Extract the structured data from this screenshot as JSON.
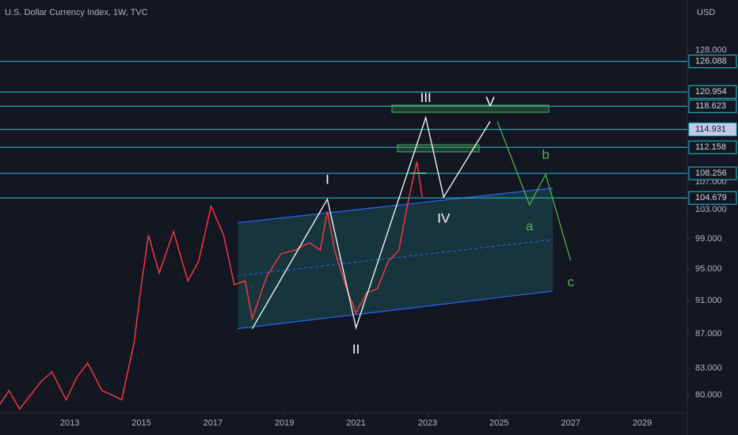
{
  "chart_data": {
    "type": "line",
    "title": "U.S. Dollar Currency Index, 1W, TVC",
    "currency": "USD",
    "log_scale": true,
    "xlim": [
      2011.05,
      2030.26
    ],
    "xticks": [
      2013,
      2015,
      2017,
      2019,
      2021,
      2023,
      2025,
      2027,
      2029
    ],
    "ylim": [
      78.1,
      137.1
    ],
    "yticks": [
      {
        "value": 80,
        "label": "80.000"
      },
      {
        "value": 83,
        "label": "83.000"
      },
      {
        "value": 87,
        "label": "87.000"
      },
      {
        "value": 91,
        "label": "91.000"
      },
      {
        "value": 95,
        "label": "95.000"
      },
      {
        "value": 99,
        "label": "99.000"
      },
      {
        "value": 103,
        "label": "103.000"
      },
      {
        "value": 107,
        "label": "107.000"
      },
      {
        "value": 128,
        "label": "128.000"
      }
    ],
    "series": [
      {
        "color": "#f23645",
        "x": [
          2011.05,
          2011.3,
          2011.6,
          2011.9,
          2012.2,
          2012.5,
          2012.9,
          2013.2,
          2013.5,
          2013.9,
          2014.2,
          2014.45,
          2014.8,
          2015.0,
          2015.2,
          2015.5,
          2015.9,
          2016.3,
          2016.6,
          2016.95,
          2017.3,
          2017.6,
          2017.9,
          2018.1,
          2018.5,
          2018.9,
          2019.3,
          2019.7,
          2020.0,
          2020.2,
          2020.4,
          2020.7,
          2021.0,
          2021.3,
          2021.6,
          2021.9,
          2022.2,
          2022.45,
          2022.7,
          2022.85
        ],
        "values": [
          79,
          80.5,
          78.5,
          80,
          81.5,
          82.6,
          79.5,
          82,
          83.6,
          80.5,
          80,
          79.5,
          86,
          93,
          99.5,
          94.5,
          100,
          93.5,
          96,
          103.5,
          99.5,
          93,
          93.5,
          88.8,
          94,
          97,
          97.5,
          98.5,
          97.5,
          102.8,
          97.5,
          93,
          89.5,
          92,
          92.5,
          96,
          97.5,
          104,
          110,
          104.8
        ]
      }
    ],
    "levels": [
      126.088,
      120.954,
      118.623,
      114.931,
      112.158,
      108.256,
      104.679
    ],
    "highlighted_level": 3,
    "level_color": "#26c6da",
    "channel": {
      "x": [
        2017.7,
        2026.5
      ],
      "upper": [
        101.2,
        106.1
      ],
      "lower": [
        87.6,
        92.2
      ],
      "color": "#2962ff"
    },
    "waves": [
      {
        "color": "#ffffff",
        "x": [
          2018.1,
          2020.2,
          2021.0,
          2022.95,
          2023.45,
          2024.75
        ],
        "values": [
          87.6,
          104.5,
          87.7,
          116.8,
          104.8,
          116.2
        ],
        "labels": [
          null,
          "I",
          "II",
          "III",
          "IV",
          "V"
        ]
      },
      {
        "color": "#4caf50",
        "x": [
          2024.95,
          2025.85,
          2026.3,
          2027.0
        ],
        "values": [
          116.2,
          103.7,
          108.1,
          96.1
        ],
        "labels": [
          null,
          "a",
          "b",
          "c"
        ]
      }
    ]
  }
}
